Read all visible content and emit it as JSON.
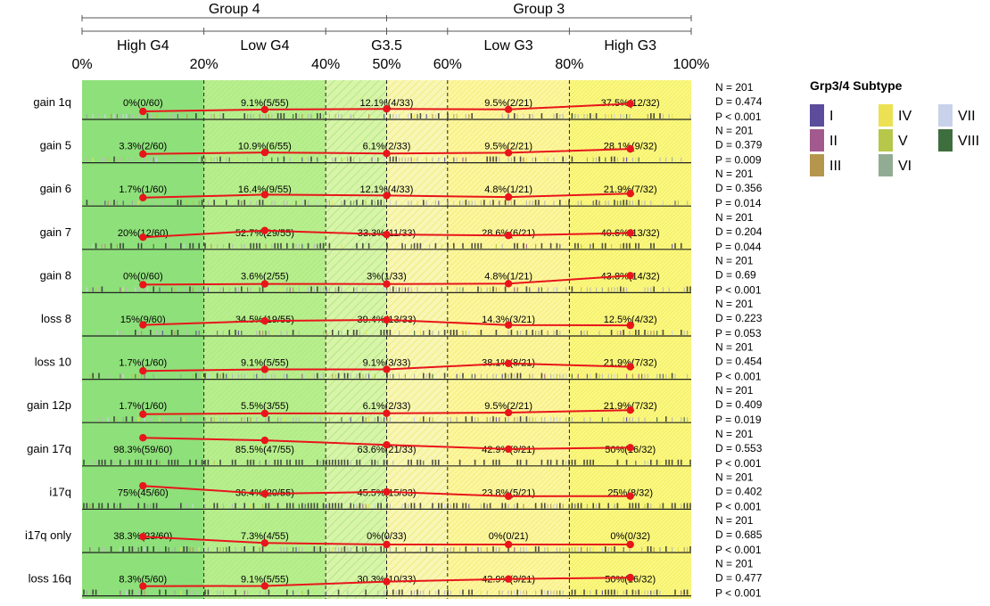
{
  "chart_data": {
    "type": "line",
    "groups": [
      "Group 4",
      "Group 3"
    ],
    "categories": [
      "High G4",
      "Low G4",
      "G3.5",
      "Low G3",
      "High G3"
    ],
    "boundaries": [
      0,
      20,
      40,
      50,
      60,
      80,
      100
    ],
    "xticks": [
      "0%",
      "20%",
      "40%",
      "50%",
      "60%",
      "80%",
      "100%"
    ],
    "xlim": [
      0,
      100
    ],
    "band_colors": [
      "#8ee07a",
      "#b9ee8e",
      "#d7f4a8",
      "#f8f6b4",
      "#fdf6a0",
      "#fbf882"
    ],
    "line_color": "#e8151b",
    "rows": [
      {
        "label": "gain 1q",
        "pct": [
          0,
          9.1,
          12.1,
          9.5,
          37.5
        ],
        "texts": [
          "0%(0/60)",
          "9.1%(5/55)",
          "12.1%(4/33)",
          "9.5%(2/21)",
          "37.5%(12/32)"
        ],
        "n": "N = 201",
        "d": "D = 0.474",
        "p": "P < 0.001",
        "density": 0.2
      },
      {
        "label": "gain 5",
        "pct": [
          3.3,
          10.9,
          6.1,
          9.5,
          28.1
        ],
        "texts": [
          "3.3%(2/60)",
          "10.9%(6/55)",
          "6.1%(2/33)",
          "9.5%(2/21)",
          "28.1%(9/32)"
        ],
        "n": "N = 201",
        "d": "D = 0.379",
        "p": "P = 0.009",
        "density": 0.22
      },
      {
        "label": "gain 6",
        "pct": [
          1.7,
          16.4,
          12.1,
          4.8,
          21.9
        ],
        "texts": [
          "1.7%(1/60)",
          "16.4%(9/55)",
          "12.1%(4/33)",
          "4.8%(1/21)",
          "21.9%(7/32)"
        ],
        "n": "N = 201",
        "d": "D = 0.356",
        "p": "P = 0.014",
        "density": 0.22
      },
      {
        "label": "gain 7",
        "pct": [
          20,
          52.7,
          33.3,
          28.6,
          40.6
        ],
        "texts": [
          "20%(12/60)",
          "52.7%(29/55)",
          "33.3%(11/33)",
          "28.6%(6/21)",
          "40.6%(13/32)"
        ],
        "n": "N = 201",
        "d": "D = 0.204",
        "p": "P = 0.044",
        "density": 0.55
      },
      {
        "label": "gain 8",
        "pct": [
          0,
          3.6,
          3,
          4.8,
          43.8
        ],
        "texts": [
          "0%(0/60)",
          "3.6%(2/55)",
          "3%(1/33)",
          "4.8%(1/21)",
          "43.8%(14/32)"
        ],
        "n": "N = 201",
        "d": "D = 0.69",
        "p": "P < 0.001",
        "density": 0.18
      },
      {
        "label": "loss 8",
        "pct": [
          15,
          34.5,
          39.4,
          14.3,
          12.5
        ],
        "texts": [
          "15%(9/60)",
          "34.5%(19/55)",
          "39.4%(13/33)",
          "14.3%(3/21)",
          "12.5%(4/32)"
        ],
        "n": "N = 201",
        "d": "D = 0.223",
        "p": "P = 0.053",
        "density": 0.4
      },
      {
        "label": "loss 10",
        "pct": [
          1.7,
          9.1,
          9.1,
          38.1,
          21.9
        ],
        "texts": [
          "1.7%(1/60)",
          "9.1%(5/55)",
          "9.1%(3/33)",
          "38.1%(8/21)",
          "21.9%(7/32)"
        ],
        "n": "N = 201",
        "d": "D = 0.454",
        "p": "P < 0.001",
        "density": 0.2
      },
      {
        "label": "gain 12p",
        "pct": [
          1.7,
          5.5,
          6.1,
          9.5,
          21.9
        ],
        "texts": [
          "1.7%(1/60)",
          "5.5%(3/55)",
          "6.1%(2/33)",
          "9.5%(2/21)",
          "21.9%(7/32)"
        ],
        "n": "N = 201",
        "d": "D = 0.409",
        "p": "P = 0.019",
        "density": 0.18
      },
      {
        "label": "gain 17q",
        "pct": [
          98.3,
          85.5,
          63.6,
          42.9,
          50
        ],
        "texts": [
          "98.3%(59/60)",
          "85.5%(47/55)",
          "63.6%(21/33)",
          "42.9%(9/21)",
          "50%(16/32)"
        ],
        "n": "N = 201",
        "d": "D = 0.553",
        "p": "P < 0.001",
        "density": 0.85
      },
      {
        "label": "i17q",
        "pct": [
          75,
          36.4,
          45.5,
          23.8,
          25
        ],
        "texts": [
          "75%(45/60)",
          "36.4%(20/55)",
          "45.5%(15/33)",
          "23.8%(5/21)",
          "25%(8/32)"
        ],
        "n": "N = 201",
        "d": "D = 0.402",
        "p": "P < 0.001",
        "density": 0.62
      },
      {
        "label": "i17q only",
        "pct": [
          38.3,
          7.3,
          0,
          0,
          0
        ],
        "texts": [
          "38.3%(23/60)",
          "7.3%(4/55)",
          "0%(0/33)",
          "0%(0/21)",
          "0%(0/32)"
        ],
        "n": "N = 201",
        "d": "D = 0.685",
        "p": "P < 0.001",
        "density": 0.3
      },
      {
        "label": "loss 16q",
        "pct": [
          8.3,
          9.1,
          30.3,
          42.9,
          50
        ],
        "texts": [
          "8.3%(5/60)",
          "9.1%(5/55)",
          "30.3%(10/33)",
          "42.9%(9/21)",
          "50%(16/32)"
        ],
        "n": "N = 201",
        "d": "D = 0.477",
        "p": "P < 0.001",
        "density": 0.35
      }
    ],
    "legend": {
      "title": "Grp3/4 Subtype",
      "items": [
        {
          "label": "I",
          "color": "#5b4c9c"
        },
        {
          "label": "II",
          "color": "#a25a8e"
        },
        {
          "label": "III",
          "color": "#b4974c"
        },
        {
          "label": "IV",
          "color": "#ece152"
        },
        {
          "label": "V",
          "color": "#b6c74a"
        },
        {
          "label": "VI",
          "color": "#92ac94"
        },
        {
          "label": "VII",
          "color": "#c8d2ea"
        },
        {
          "label": "VIII",
          "color": "#3e6e3e"
        }
      ]
    }
  }
}
